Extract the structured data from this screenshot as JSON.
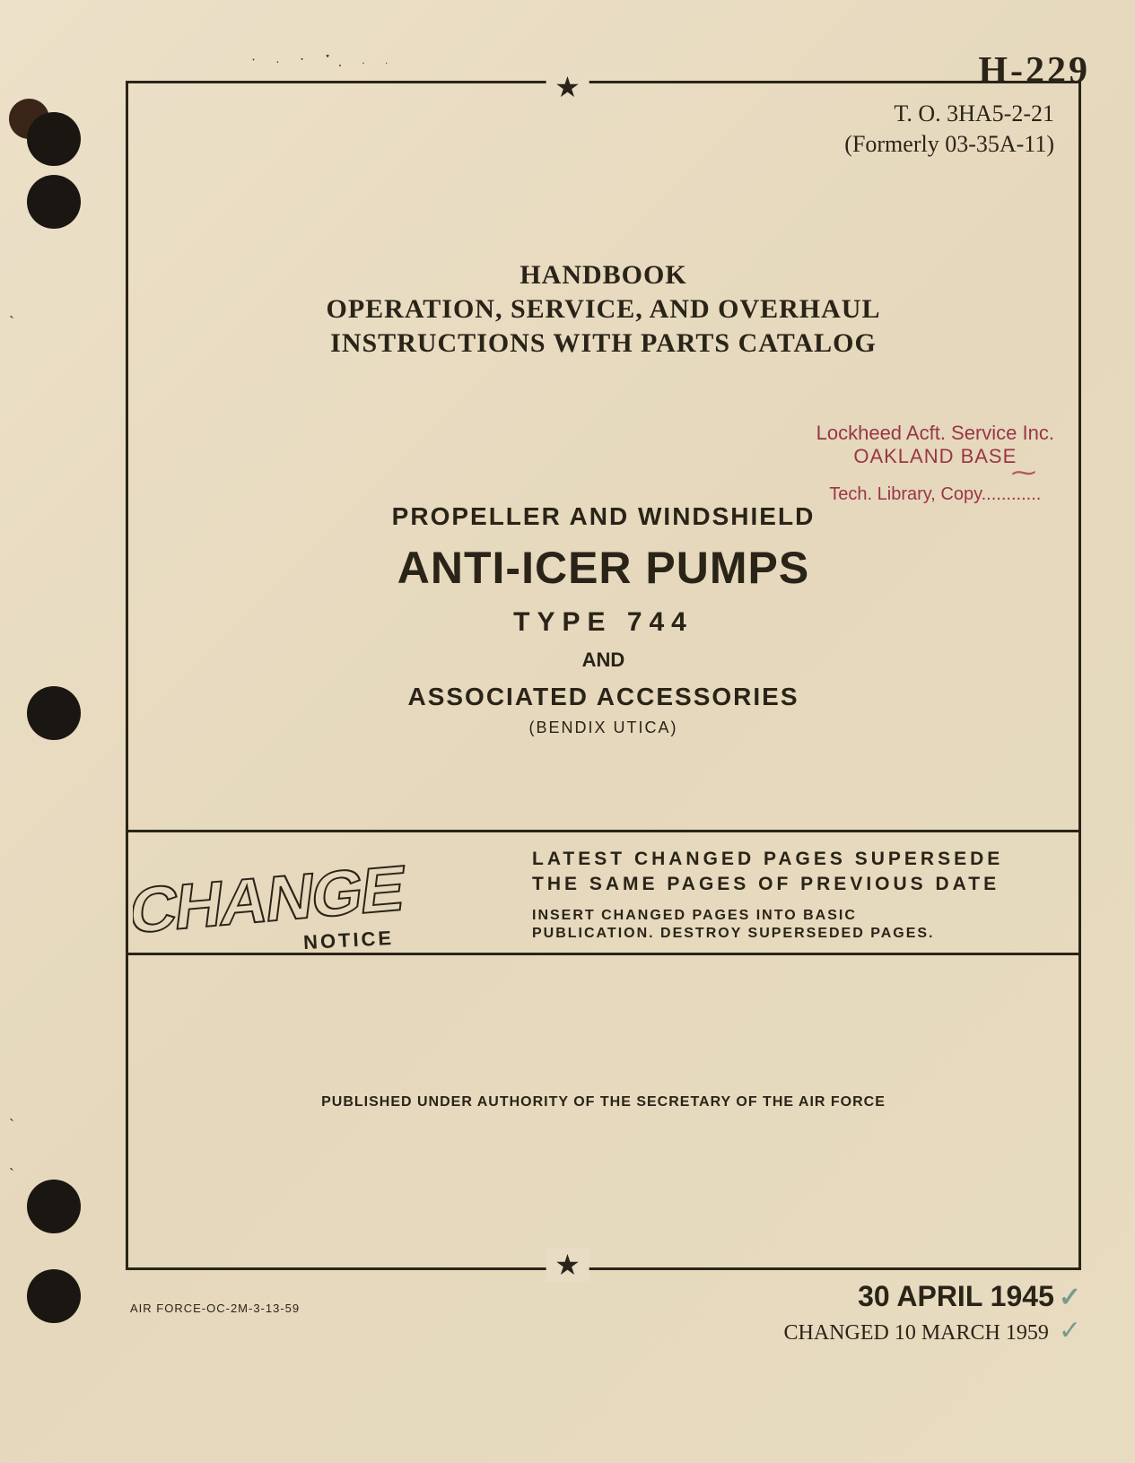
{
  "handwritten_id": "H-229",
  "speckle_pattern": "· ˙ · ˙ ·",
  "to_number": {
    "main": "T. O. 3HA5-2-21",
    "formerly": "(Formerly 03-35A-11)"
  },
  "handbook": {
    "line1": "HANDBOOK",
    "line2": "OPERATION, SERVICE, AND OVERHAUL",
    "line3": "INSTRUCTIONS WITH PARTS CATALOG"
  },
  "stamp": {
    "line1": "Lockheed Acft. Service Inc.",
    "line2": "OAKLAND BASE",
    "line3": "Tech. Library, Copy............"
  },
  "title": {
    "sub1": "PROPELLER AND WINDSHIELD",
    "main": "ANTI-ICER PUMPS",
    "type": "TYPE 744",
    "and": "AND",
    "assoc": "ASSOCIATED ACCESSORIES",
    "mfr": "(BENDIX UTICA)"
  },
  "change": {
    "graphic_main": "CHANGE",
    "graphic_sub": "NOTICE",
    "line1": "LATEST CHANGED PAGES SUPERSEDE",
    "line2": "THE SAME PAGES OF PREVIOUS DATE",
    "line3": "INSERT CHANGED PAGES INTO BASIC",
    "line4": "PUBLICATION. DESTROY SUPERSEDED PAGES."
  },
  "authority": "PUBLISHED UNDER AUTHORITY OF THE SECRETARY OF THE AIR FORCE",
  "footer_code": "AIR FORCE-OC-2M-3-13-59",
  "dates": {
    "main": "30 APRIL 1945",
    "changed": "CHANGED 10 MARCH 1959"
  },
  "stars": {
    "top": "★",
    "bottom": "★"
  },
  "colors": {
    "paper": "#e8dcc4",
    "ink": "#2a2418",
    "stamp": "#9a3548",
    "check": "#7a9a8a"
  }
}
